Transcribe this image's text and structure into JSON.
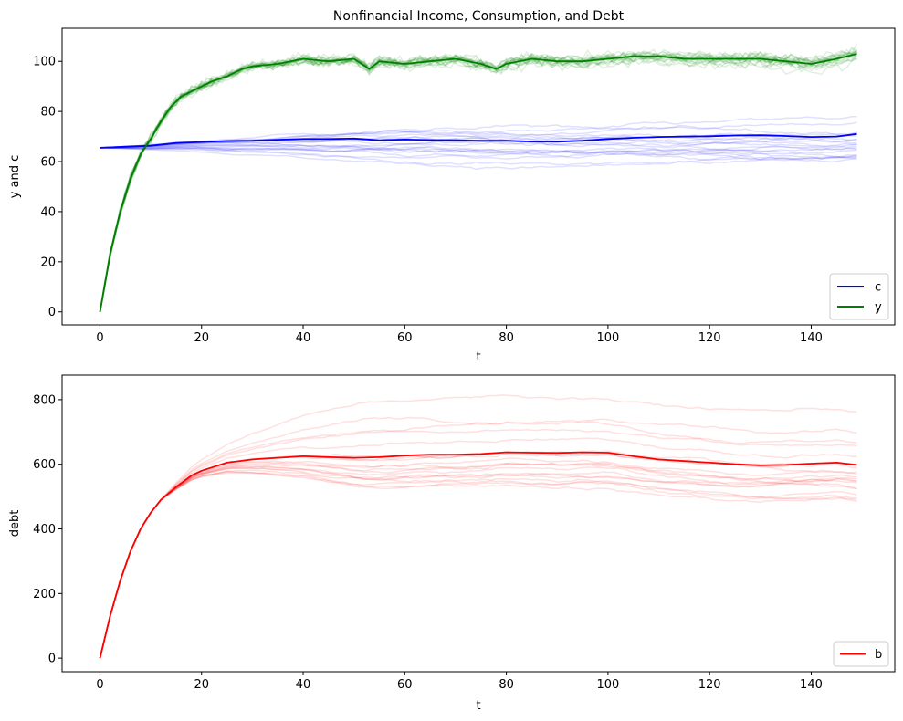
{
  "chart_data": [
    {
      "type": "line",
      "title": "Nonfinancial Income, Consumption, and Debt",
      "xlabel": "t",
      "ylabel": "y and c",
      "xlim": [
        -7.45,
        156.45
      ],
      "ylim": [
        -5.2,
        113.2
      ],
      "xticks": [
        0,
        20,
        40,
        60,
        80,
        100,
        120,
        140
      ],
      "yticks": [
        0,
        20,
        40,
        60,
        80,
        100
      ],
      "grid": false,
      "legend_placement": "lower-right",
      "legend": [
        {
          "label": "c",
          "color": "#0000ff"
        },
        {
          "label": "y",
          "color": "#008000"
        }
      ],
      "series": [
        {
          "name": "c",
          "color": "#0000ff",
          "x": [
            0,
            10,
            15,
            20,
            25,
            30,
            35,
            40,
            45,
            50,
            55,
            60,
            65,
            70,
            75,
            80,
            85,
            90,
            95,
            100,
            105,
            110,
            115,
            120,
            125,
            130,
            135,
            140,
            145,
            149
          ],
          "values": [
            65.5,
            66.3,
            67.4,
            67.8,
            68.2,
            68.3,
            68.7,
            69.0,
            69.0,
            69.2,
            68.5,
            68.8,
            68.6,
            68.5,
            68.3,
            68.3,
            68.0,
            67.9,
            68.3,
            69.0,
            69.5,
            69.8,
            70.0,
            70.1,
            70.4,
            70.5,
            70.2,
            69.8,
            70.0,
            71.0
          ]
        },
        {
          "name": "y",
          "color": "#008000",
          "x": [
            0,
            2,
            4,
            6,
            8,
            10,
            12,
            14,
            16,
            18,
            20,
            22,
            25,
            28,
            30,
            35,
            40,
            45,
            50,
            53,
            55,
            60,
            65,
            70,
            75,
            78,
            80,
            85,
            90,
            95,
            100,
            105,
            110,
            115,
            120,
            125,
            130,
            135,
            140,
            145,
            149
          ],
          "values": [
            0,
            23,
            40,
            53,
            63,
            69,
            76,
            82,
            86,
            88,
            90,
            92,
            94,
            97,
            98,
            99,
            101,
            100,
            101,
            97,
            100,
            99,
            100,
            101,
            99,
            97,
            99,
            101,
            100,
            100,
            101,
            102,
            102,
            101,
            101,
            101,
            101,
            100,
            99,
            101,
            103
          ]
        }
      ]
    },
    {
      "type": "line",
      "xlabel": "t",
      "ylabel": "debt",
      "xlim": [
        -7.45,
        156.45
      ],
      "ylim": [
        -42,
        876
      ],
      "xticks": [
        0,
        20,
        40,
        60,
        80,
        100,
        120,
        140
      ],
      "yticks": [
        0,
        200,
        400,
        600,
        800
      ],
      "grid": false,
      "legend_placement": "lower-right",
      "legend": [
        {
          "label": "b",
          "color": "#ff0000"
        }
      ],
      "series": [
        {
          "name": "b",
          "color": "#ff0000",
          "x": [
            0,
            2,
            4,
            6,
            8,
            10,
            12,
            15,
            18,
            20,
            25,
            30,
            35,
            40,
            45,
            50,
            55,
            60,
            65,
            70,
            75,
            80,
            85,
            90,
            95,
            100,
            105,
            110,
            115,
            120,
            125,
            130,
            135,
            140,
            145,
            149
          ],
          "values": [
            0,
            130,
            240,
            330,
            400,
            450,
            490,
            530,
            565,
            580,
            605,
            615,
            620,
            625,
            622,
            620,
            622,
            627,
            630,
            630,
            632,
            637,
            636,
            635,
            637,
            636,
            625,
            615,
            610,
            605,
            600,
            597,
            598,
            602,
            605,
            598
          ]
        }
      ]
    }
  ]
}
